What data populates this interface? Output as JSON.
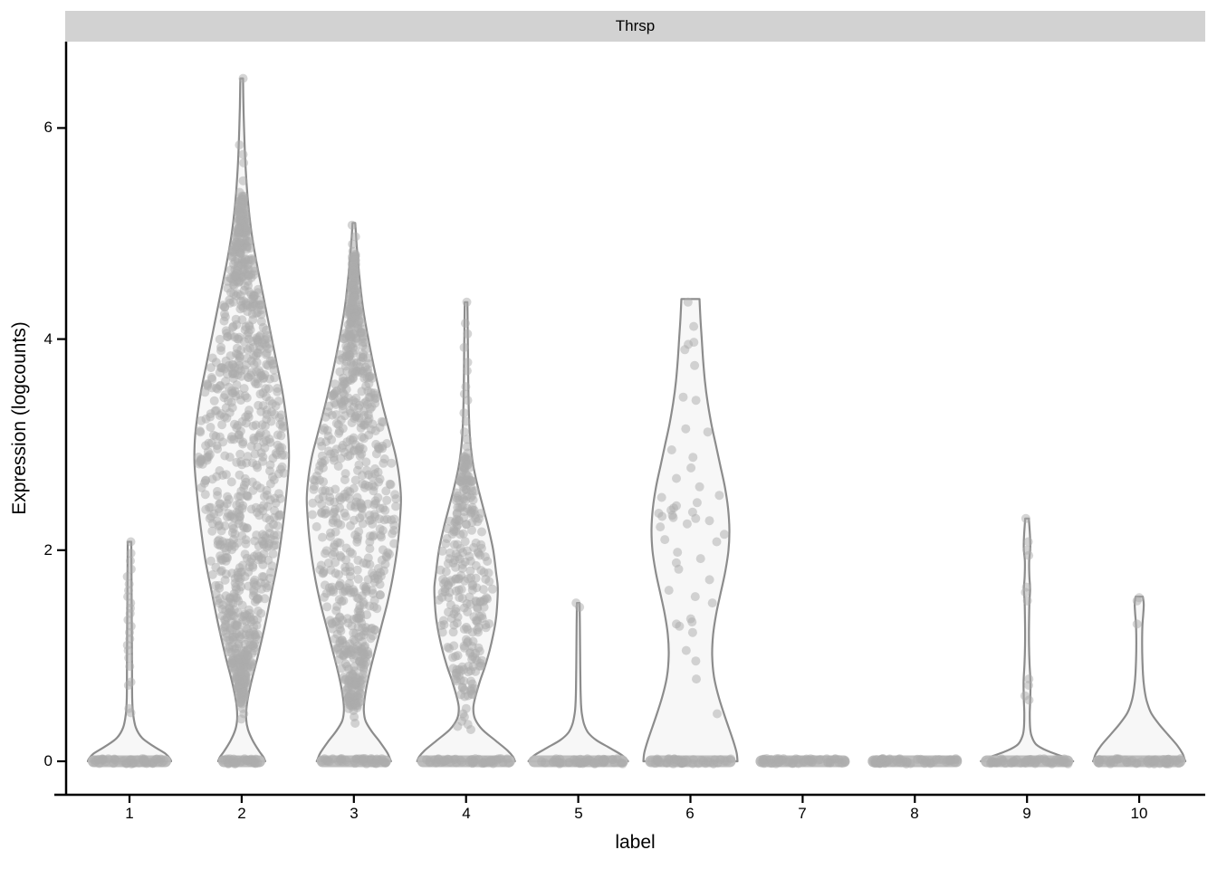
{
  "figure": {
    "facet_title": "Thrsp",
    "x_axis_label": "label",
    "y_axis_label": "Expression (logcounts)"
  },
  "colors": {
    "strip_bg": "#D2D2D2",
    "strip_text": "#000000",
    "axis_line": "#000000",
    "tick_text": "#000000",
    "violin_fill": "#F7F7F7",
    "violin_stroke": "#8C8C8C",
    "point_fill": "#ACACAC",
    "point_opacity": 0.5,
    "zero_band_fill": "#B9B9B9"
  },
  "chart_data": {
    "type": "violin",
    "title": "Thrsp",
    "xlabel": "label",
    "ylabel": "Expression (logcounts)",
    "legend": "none",
    "grid": "off",
    "x_categories": [
      "1",
      "2",
      "3",
      "4",
      "5",
      "6",
      "7",
      "8",
      "9",
      "10"
    ],
    "yticks": [
      0,
      2,
      4,
      6
    ],
    "ytick_labels": [
      "6",
      "4",
      "2",
      "0"
    ],
    "ylim": [
      -0.32,
      6.85
    ],
    "violins": [
      {
        "label": "1",
        "max_value": 2.08,
        "profile": [
          [
            2.08,
            2
          ],
          [
            1.8,
            2.2
          ],
          [
            1.5,
            2.4
          ],
          [
            1.2,
            2.6
          ],
          [
            0.9,
            2.8
          ],
          [
            0.6,
            3
          ],
          [
            0.45,
            4
          ],
          [
            0.32,
            7
          ],
          [
            0.22,
            14
          ],
          [
            0.14,
            27
          ],
          [
            0.07,
            40
          ],
          [
            0.02,
            45
          ],
          [
            0,
            46
          ]
        ],
        "values": [
          2.08,
          1.97,
          1.9,
          1.82,
          1.75,
          1.68,
          1.62,
          1.56,
          1.5,
          1.45,
          1.4,
          1.34,
          1.28,
          1.22,
          1.16,
          1.1,
          1.05,
          0.98,
          0.9,
          0.75,
          0.72,
          0.5,
          0.46
        ],
        "cloud": null,
        "zero_band": {
          "halfwidth": 46,
          "count": 45
        }
      },
      {
        "label": "2",
        "max_value": 6.47,
        "profile": [
          [
            6.47,
            1.5
          ],
          [
            6.2,
            2
          ],
          [
            5.9,
            3
          ],
          [
            5.6,
            4.5
          ],
          [
            5.3,
            7
          ],
          [
            5.0,
            11
          ],
          [
            4.7,
            17
          ],
          [
            4.4,
            24
          ],
          [
            4.1,
            31
          ],
          [
            3.8,
            38
          ],
          [
            3.5,
            45
          ],
          [
            3.2,
            50
          ],
          [
            3.0,
            52
          ],
          [
            2.8,
            52
          ],
          [
            2.5,
            49
          ],
          [
            2.2,
            45
          ],
          [
            1.9,
            40
          ],
          [
            1.6,
            33
          ],
          [
            1.3,
            26
          ],
          [
            1.0,
            18
          ],
          [
            0.8,
            12
          ],
          [
            0.65,
            8
          ],
          [
            0.52,
            5.5
          ],
          [
            0.4,
            5
          ],
          [
            0.3,
            7
          ],
          [
            0.2,
            12
          ],
          [
            0.1,
            19
          ],
          [
            0.04,
            24
          ],
          [
            0,
            26
          ]
        ],
        "values": [
          6.47,
          5.84,
          5.75,
          5.67,
          5.5,
          5.39,
          0.5,
          0.45,
          0.4
        ],
        "cloud": {
          "count": 950,
          "min": 0.55,
          "max": 5.35
        },
        "zero_band": {
          "halfwidth": 26,
          "count": 30
        }
      },
      {
        "label": "3",
        "max_value": 5.1,
        "profile": [
          [
            5.1,
            1.5
          ],
          [
            4.9,
            3
          ],
          [
            4.6,
            6
          ],
          [
            4.3,
            10
          ],
          [
            4.0,
            16
          ],
          [
            3.7,
            23
          ],
          [
            3.4,
            31
          ],
          [
            3.1,
            40
          ],
          [
            2.9,
            46
          ],
          [
            2.7,
            50
          ],
          [
            2.5,
            52
          ],
          [
            2.3,
            51
          ],
          [
            2.1,
            49
          ],
          [
            1.9,
            46
          ],
          [
            1.7,
            42
          ],
          [
            1.5,
            37
          ],
          [
            1.3,
            31
          ],
          [
            1.1,
            25
          ],
          [
            0.9,
            19
          ],
          [
            0.75,
            15
          ],
          [
            0.6,
            12
          ],
          [
            0.48,
            11
          ],
          [
            0.38,
            13
          ],
          [
            0.28,
            20
          ],
          [
            0.18,
            29
          ],
          [
            0.08,
            37
          ],
          [
            0.02,
            40
          ],
          [
            0,
            41
          ]
        ],
        "values": [
          5.08,
          4.97,
          4.9,
          4.83,
          0.48,
          0.42,
          0.36
        ],
        "cloud": {
          "count": 780,
          "min": 0.5,
          "max": 4.8
        },
        "zero_band": {
          "halfwidth": 41,
          "count": 40
        }
      },
      {
        "label": "4",
        "max_value": 4.35,
        "profile": [
          [
            4.35,
            1.5
          ],
          [
            4.1,
            1.8
          ],
          [
            3.8,
            2.2
          ],
          [
            3.5,
            2.6
          ],
          [
            3.2,
            3.5
          ],
          [
            3.0,
            5
          ],
          [
            2.8,
            8
          ],
          [
            2.6,
            13
          ],
          [
            2.4,
            19
          ],
          [
            2.2,
            25
          ],
          [
            2.0,
            30
          ],
          [
            1.8,
            33
          ],
          [
            1.65,
            35
          ],
          [
            1.5,
            34.5
          ],
          [
            1.35,
            33
          ],
          [
            1.2,
            30
          ],
          [
            1.05,
            26
          ],
          [
            0.9,
            21
          ],
          [
            0.75,
            15
          ],
          [
            0.6,
            10
          ],
          [
            0.5,
            8
          ],
          [
            0.4,
            10
          ],
          [
            0.3,
            18
          ],
          [
            0.2,
            32
          ],
          [
            0.1,
            46
          ],
          [
            0.04,
            52
          ],
          [
            0,
            54
          ]
        ],
        "values": [
          4.35,
          4.15,
          4.05,
          3.92,
          3.78,
          3.7,
          3.55,
          3.48,
          3.42,
          3.3,
          3.22,
          3.12,
          3.05,
          2.98,
          2.92,
          0.5,
          0.45,
          0.42,
          0.38,
          0.35,
          0.33,
          0.3
        ],
        "cloud": {
          "count": 280,
          "min": 0.6,
          "max": 2.88
        },
        "zero_band": {
          "halfwidth": 54,
          "count": 50
        }
      },
      {
        "label": "5",
        "max_value": 1.5,
        "profile": [
          [
            1.5,
            1.5
          ],
          [
            1.3,
            1.8
          ],
          [
            1.1,
            2
          ],
          [
            0.9,
            2.2
          ],
          [
            0.7,
            2.5
          ],
          [
            0.55,
            3
          ],
          [
            0.45,
            4
          ],
          [
            0.35,
            6.5
          ],
          [
            0.27,
            11
          ],
          [
            0.2,
            20
          ],
          [
            0.13,
            34
          ],
          [
            0.06,
            48
          ],
          [
            0.02,
            53
          ],
          [
            0,
            55
          ]
        ],
        "values": [
          1.5,
          1.46
        ],
        "cloud": null,
        "zero_band": {
          "halfwidth": 55,
          "count": 50
        }
      },
      {
        "label": "6",
        "max_value": 4.38,
        "profile": [
          [
            4.38,
            10
          ],
          [
            4.2,
            11
          ],
          [
            4.0,
            12.5
          ],
          [
            3.8,
            14
          ],
          [
            3.6,
            16
          ],
          [
            3.4,
            19
          ],
          [
            3.2,
            23
          ],
          [
            3.0,
            28
          ],
          [
            2.8,
            33
          ],
          [
            2.6,
            38
          ],
          [
            2.4,
            41.5
          ],
          [
            2.2,
            43
          ],
          [
            2.0,
            42
          ],
          [
            1.8,
            38.5
          ],
          [
            1.6,
            33.5
          ],
          [
            1.4,
            28.5
          ],
          [
            1.2,
            25
          ],
          [
            1.0,
            24
          ],
          [
            0.8,
            26
          ],
          [
            0.6,
            31.5
          ],
          [
            0.4,
            39
          ],
          [
            0.2,
            47
          ],
          [
            0.08,
            51
          ],
          [
            0,
            52
          ]
        ],
        "values": [
          4.35,
          4.12,
          3.97,
          3.95,
          3.9,
          3.75,
          3.45,
          3.42,
          3.15,
          3.12,
          2.95,
          2.88,
          2.78,
          2.68,
          2.6,
          2.52,
          2.5,
          2.45,
          2.42,
          2.4,
          2.38,
          2.36,
          2.35,
          2.33,
          2.32,
          2.31,
          2.3,
          2.28,
          2.25,
          2.22,
          2.15,
          2.1,
          2.08,
          1.98,
          1.92,
          1.88,
          1.82,
          1.72,
          1.62,
          1.56,
          1.5,
          1.35,
          1.32,
          1.3,
          1.28,
          1.22,
          1.05,
          0.95,
          0.78,
          0.45
        ],
        "cloud": null,
        "zero_band": {
          "halfwidth": 50,
          "count": 45
        }
      },
      {
        "label": "7",
        "max_value": 0,
        "profile": null,
        "values": [],
        "cloud": null,
        "zero_band": {
          "halfwidth": 52,
          "count": 55
        }
      },
      {
        "label": "8",
        "max_value": 0,
        "profile": null,
        "values": [],
        "cloud": null,
        "zero_band": {
          "halfwidth": 52,
          "count": 55
        }
      },
      {
        "label": "9",
        "max_value": 2.3,
        "profile": [
          [
            2.3,
            2
          ],
          [
            2.15,
            3.2
          ],
          [
            2.02,
            3.6
          ],
          [
            1.9,
            2.4
          ],
          [
            1.75,
            2.6
          ],
          [
            1.63,
            3.4
          ],
          [
            1.5,
            2.6
          ],
          [
            1.3,
            2.2
          ],
          [
            1.1,
            2.2
          ],
          [
            0.92,
            2.8
          ],
          [
            0.75,
            3.8
          ],
          [
            0.6,
            3.6
          ],
          [
            0.45,
            3
          ],
          [
            0.32,
            3.4
          ],
          [
            0.24,
            5
          ],
          [
            0.16,
            10
          ],
          [
            0.1,
            22
          ],
          [
            0.05,
            38
          ],
          [
            0.02,
            47
          ],
          [
            0,
            51
          ]
        ],
        "values": [
          2.3,
          2.08,
          2.0,
          1.95,
          1.65,
          1.6,
          1.52,
          0.78,
          0.72,
          0.62,
          0.58
        ],
        "cloud": null,
        "zero_band": {
          "halfwidth": 51,
          "count": 50
        }
      },
      {
        "label": "10",
        "max_value": 1.55,
        "profile": [
          [
            1.56,
            4
          ],
          [
            1.49,
            5
          ],
          [
            1.4,
            4.5
          ],
          [
            1.28,
            3.5
          ],
          [
            1.12,
            3.2
          ],
          [
            0.96,
            3.5
          ],
          [
            0.82,
            4.2
          ],
          [
            0.7,
            5.5
          ],
          [
            0.58,
            8
          ],
          [
            0.46,
            13
          ],
          [
            0.35,
            22
          ],
          [
            0.25,
            32
          ],
          [
            0.15,
            42
          ],
          [
            0.07,
            48
          ],
          [
            0.02,
            50
          ],
          [
            0,
            51
          ]
        ],
        "values": [
          1.55,
          1.52,
          1.3
        ],
        "cloud": null,
        "zero_band": {
          "halfwidth": 51,
          "count": 50
        }
      }
    ]
  }
}
